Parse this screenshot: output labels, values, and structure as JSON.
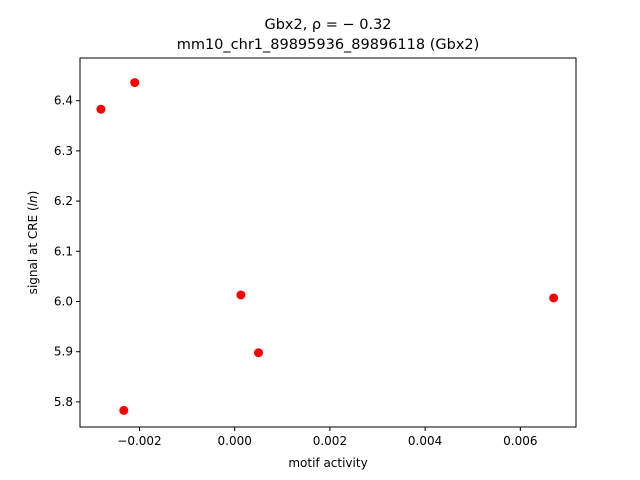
{
  "chart_data": {
    "type": "scatter",
    "title_line1": "Gbx2, ρ = − 0.32",
    "title_line2": "mm10_chr1_89895936_89896118 (Gbx2)",
    "xlabel": "motif activity",
    "ylabel": "signal at CRE (ln)",
    "xlim": [
      -0.00325,
      0.00717
    ],
    "ylim": [
      5.75,
      6.485
    ],
    "xticks": [
      -0.002,
      0.0,
      0.002,
      0.004,
      0.006
    ],
    "xtick_labels": [
      "−0.002",
      "0.000",
      "0.002",
      "0.004",
      "0.006"
    ],
    "yticks": [
      5.8,
      5.9,
      6.0,
      6.1,
      6.2,
      6.3,
      6.4
    ],
    "ytick_labels": [
      "5.8",
      "5.9",
      "6.0",
      "6.1",
      "6.2",
      "6.3",
      "6.4"
    ],
    "grid": false,
    "marker_color": "#ff0000",
    "points": [
      {
        "x": -0.00281,
        "y": 6.383
      },
      {
        "x": -0.0021,
        "y": 6.436
      },
      {
        "x": 0.00013,
        "y": 6.013
      },
      {
        "x": 0.0005,
        "y": 5.898
      },
      {
        "x": -0.00233,
        "y": 5.783
      },
      {
        "x": 0.0067,
        "y": 6.007
      }
    ]
  }
}
